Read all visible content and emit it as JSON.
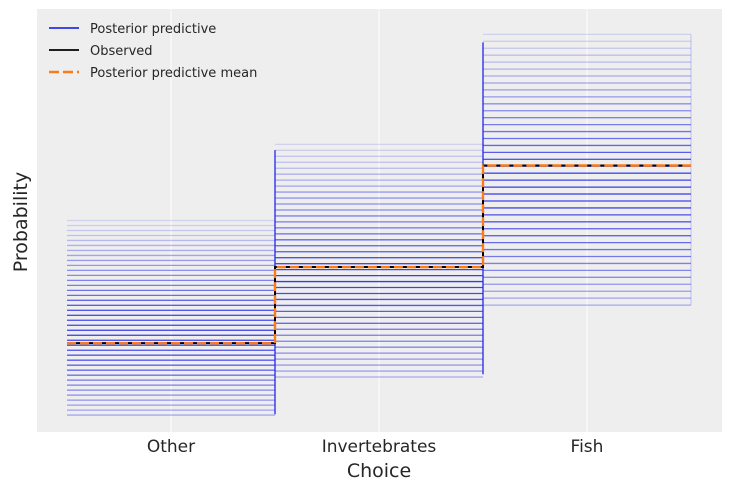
{
  "chart_data": {
    "type": "line",
    "style": "step",
    "xlabel": "Choice",
    "ylabel": "Probability",
    "categories": [
      "Other",
      "Invertebrates",
      "Fish"
    ],
    "grid": true,
    "legend_position": "top-left",
    "y_tick_labels_visible": false,
    "series": [
      {
        "name": "Posterior predictive",
        "color": "#2a2eec",
        "draws_per_category": {
          "Other": {
            "min": 0.04,
            "max": 0.5
          },
          "Invertebrates": {
            "min": 0.13,
            "max": 0.68
          },
          "Fish": {
            "min": 0.3,
            "max": 0.94
          }
        }
      },
      {
        "name": "Observed",
        "color": "#000000",
        "values": [
          0.21,
          0.39,
          0.63
        ]
      },
      {
        "name": "Posterior predictive mean",
        "color": "#fa7c17",
        "values": [
          0.21,
          0.39,
          0.63
        ]
      }
    ]
  }
}
